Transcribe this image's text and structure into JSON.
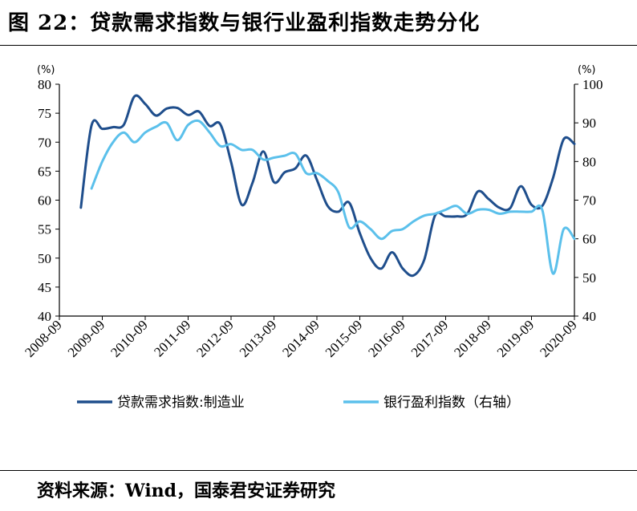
{
  "figure_title": "图 22：贷款需求指数与银行业盈利指数走势分化",
  "source_note": "资料来源：Wind，国泰君安证券研究",
  "colors": {
    "series_left": "#1F4E8C",
    "series_right": "#5BC0EB",
    "axis": "#000000"
  },
  "chart_data": {
    "type": "line",
    "left_unit": "(%)",
    "right_unit": "(%)",
    "y_left": {
      "min": 40,
      "max": 80,
      "ticks": [
        40,
        45,
        50,
        55,
        60,
        65,
        70,
        75,
        80
      ]
    },
    "y_right": {
      "min": 40,
      "max": 100,
      "ticks": [
        40,
        50,
        60,
        70,
        80,
        90,
        100
      ]
    },
    "x_ticks": [
      "2008-09",
      "2009-09",
      "2010-09",
      "2011-09",
      "2012-09",
      "2013-09",
      "2014-09",
      "2015-09",
      "2016-09",
      "2017-09",
      "2018-09",
      "2019-09",
      "2020-09"
    ],
    "x_range": [
      "2008-09",
      "2020-09"
    ],
    "legend_position": "bottom",
    "series": [
      {
        "name": "贷款需求指数:制造业",
        "axis": "left",
        "x": [
          "2009-03",
          "2009-06",
          "2009-09",
          "2009-12",
          "2010-03",
          "2010-06",
          "2010-09",
          "2010-12",
          "2011-03",
          "2011-06",
          "2011-09",
          "2011-12",
          "2012-03",
          "2012-06",
          "2012-09",
          "2012-12",
          "2013-03",
          "2013-06",
          "2013-09",
          "2013-12",
          "2014-03",
          "2014-06",
          "2014-09",
          "2014-12",
          "2015-03",
          "2015-06",
          "2015-09",
          "2015-12",
          "2016-03",
          "2016-06",
          "2016-09",
          "2016-12",
          "2017-03",
          "2017-06",
          "2017-09",
          "2017-12",
          "2018-03",
          "2018-06",
          "2018-09",
          "2018-12",
          "2019-03",
          "2019-06",
          "2019-09",
          "2019-12",
          "2020-03",
          "2020-06",
          "2020-09"
        ],
        "values": [
          58.7,
          72.9,
          72.3,
          72.6,
          73.0,
          77.9,
          76.6,
          74.6,
          75.8,
          75.9,
          74.7,
          75.3,
          72.8,
          73.1,
          66.6,
          59.2,
          63.0,
          68.4,
          63.1,
          64.8,
          65.5,
          67.7,
          63.5,
          59.0,
          58.0,
          59.6,
          54.3,
          50.0,
          48.2,
          51.0,
          48.2,
          47.0,
          49.7,
          57.3,
          57.2,
          57.2,
          57.6,
          61.5,
          60.2,
          58.7,
          58.6,
          62.4,
          59.2,
          59.0,
          63.8,
          70.5,
          69.7
        ]
      },
      {
        "name": "银行盈利指数（右轴）",
        "axis": "right",
        "x": [
          "2009-06",
          "2009-09",
          "2009-12",
          "2010-03",
          "2010-06",
          "2010-09",
          "2010-12",
          "2011-03",
          "2011-06",
          "2011-09",
          "2011-12",
          "2012-03",
          "2012-06",
          "2012-09",
          "2012-12",
          "2013-03",
          "2013-06",
          "2013-09",
          "2013-12",
          "2014-03",
          "2014-06",
          "2014-09",
          "2014-12",
          "2015-03",
          "2015-06",
          "2015-09",
          "2015-12",
          "2016-03",
          "2016-06",
          "2016-09",
          "2016-12",
          "2017-03",
          "2017-06",
          "2017-09",
          "2017-12",
          "2018-03",
          "2018-06",
          "2018-09",
          "2018-12",
          "2019-03",
          "2019-06",
          "2019-09",
          "2019-12",
          "2020-03",
          "2020-06",
          "2020-09"
        ],
        "values": [
          73.0,
          80.0,
          85.0,
          87.5,
          85.0,
          87.5,
          89.0,
          90.0,
          85.5,
          89.5,
          90.5,
          87.5,
          84.0,
          84.5,
          83.0,
          83.0,
          80.5,
          81.0,
          81.5,
          82.0,
          77.0,
          77.0,
          75.0,
          72.0,
          63.0,
          64.5,
          62.5,
          60.0,
          62.0,
          62.5,
          64.5,
          66.0,
          66.5,
          67.5,
          68.5,
          66.5,
          67.5,
          67.5,
          66.5,
          67.0,
          67.0,
          67.0,
          67.5,
          51.0,
          62.5,
          60.0
        ]
      }
    ]
  }
}
